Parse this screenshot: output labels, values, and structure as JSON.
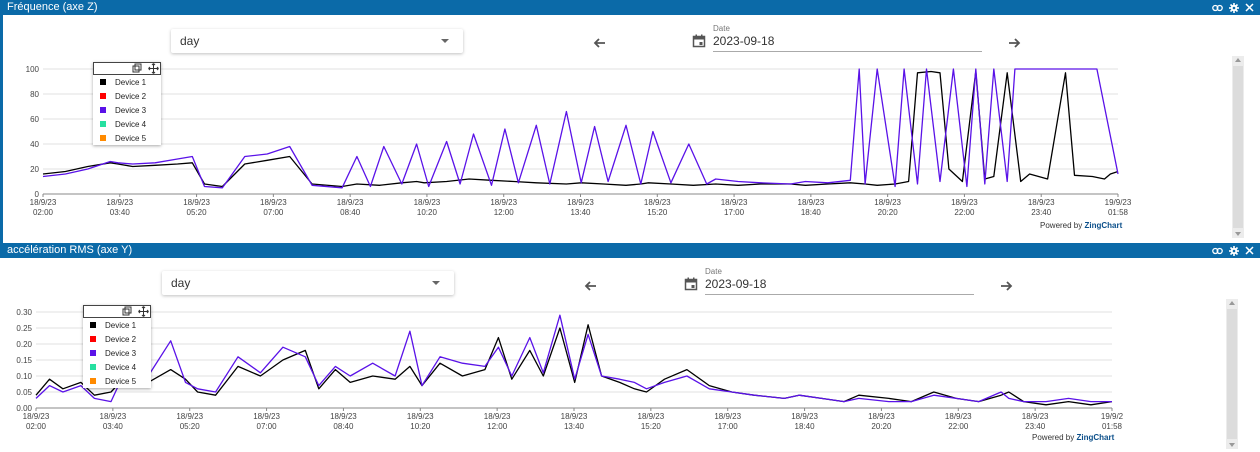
{
  "panels": [
    {
      "title": "Fréquence (axe Z)",
      "period_select": {
        "value": "day"
      },
      "date_field": {
        "label": "Date",
        "value": "2023-09-18"
      },
      "powered_by": {
        "prefix": "Powered by ",
        "brand": "ZingChart"
      },
      "legend": [
        {
          "label": "Device 1",
          "color": "#000000"
        },
        {
          "label": "Device 2",
          "color": "#ff0000"
        },
        {
          "label": "Device 3",
          "color": "#5a12e8"
        },
        {
          "label": "Device 4",
          "color": "#26e0a0"
        },
        {
          "label": "Device 5",
          "color": "#ff8a00"
        }
      ]
    },
    {
      "title": "accélération RMS (axe Y)",
      "period_select": {
        "value": "day"
      },
      "date_field": {
        "label": "Date",
        "value": "2023-09-18"
      },
      "powered_by": {
        "prefix": "Powered by ",
        "brand": "ZingChart"
      },
      "legend": [
        {
          "label": "Device 1",
          "color": "#000000"
        },
        {
          "label": "Device 2",
          "color": "#ff0000"
        },
        {
          "label": "Device 3",
          "color": "#5a12e8"
        },
        {
          "label": "Device 4",
          "color": "#26e0a0"
        },
        {
          "label": "Device 5",
          "color": "#ff8a00"
        }
      ]
    }
  ],
  "icons": [
    "link-icon",
    "gear-icon",
    "close-icon",
    "calendar-icon",
    "arrow-left-icon",
    "arrow-right-icon",
    "restore-icon",
    "move-icon"
  ],
  "chart_data": [
    {
      "type": "line",
      "title": "Fréquence (axe Z)",
      "x_tick_dates": [
        "18/9/23",
        "18/9/23",
        "18/9/23",
        "18/9/23",
        "18/9/23",
        "18/9/23",
        "18/9/23",
        "18/9/23",
        "18/9/23",
        "18/9/23",
        "18/9/23",
        "18/9/23",
        "18/9/23",
        "18/9/23",
        "19/9/23"
      ],
      "x_tick_times": [
        "02:00",
        "03:40",
        "05:20",
        "07:00",
        "08:40",
        "10:20",
        "12:00",
        "13:40",
        "15:20",
        "17:00",
        "18:40",
        "20:20",
        "22:00",
        "23:40",
        "01:58"
      ],
      "y_ticks": [
        "0",
        "20",
        "40",
        "60",
        "80",
        "100"
      ],
      "ylim": [
        0,
        100
      ],
      "grid": true,
      "legend_position": "top-left",
      "series": [
        {
          "name": "Device 1",
          "color": "#000000",
          "x": [
            2.0,
            2.5,
            3.0,
            3.5,
            3.67,
            4.0,
            4.5,
            5.0,
            5.33,
            5.6,
            6.0,
            6.5,
            7.0,
            7.5,
            8.0,
            8.67,
            9.0,
            9.5,
            10.0,
            10.33,
            10.5,
            11.0,
            11.5,
            12.0,
            12.5,
            13.0,
            13.67,
            14.0,
            14.5,
            15.0,
            15.33,
            15.5,
            16.0,
            16.5,
            17.0,
            17.5,
            18.0,
            18.67,
            19.0,
            19.5,
            20.0,
            20.33,
            20.6,
            21.0,
            21.3,
            21.5,
            21.8,
            22.0,
            22.2,
            22.5,
            22.8,
            23.0,
            23.2,
            23.5,
            23.8,
            24.0,
            24.4,
            24.8,
            25.0,
            25.4,
            25.67,
            25.8,
            25.97
          ],
          "y": [
            16,
            18,
            22,
            25,
            24,
            22,
            23,
            24,
            25,
            8,
            6,
            24,
            27,
            30,
            8,
            6,
            8,
            7,
            9,
            10,
            9,
            10,
            12,
            11,
            10,
            9,
            8,
            9,
            8,
            7,
            8,
            9,
            8,
            7,
            8,
            7,
            8,
            8,
            7,
            8,
            9,
            8,
            7,
            8,
            10,
            97,
            98,
            97,
            20,
            10,
            98,
            12,
            14,
            97,
            10,
            16,
            12,
            97,
            15,
            14,
            12,
            16,
            18
          ]
        },
        {
          "name": "Device 3",
          "color": "#5a12e8",
          "x": [
            2.0,
            2.5,
            3.0,
            3.5,
            3.67,
            4.0,
            4.5,
            5.0,
            5.33,
            5.6,
            6.0,
            6.5,
            7.0,
            7.5,
            8.0,
            8.67,
            9.0,
            9.3,
            9.6,
            10.0,
            10.33,
            10.6,
            11.0,
            11.3,
            11.6,
            12.0,
            12.3,
            12.6,
            13.0,
            13.3,
            13.67,
            14.0,
            14.3,
            14.6,
            15.0,
            15.33,
            15.6,
            16.0,
            16.4,
            16.8,
            17.0,
            17.5,
            18.0,
            18.67,
            19.0,
            19.5,
            20.0,
            20.2,
            20.33,
            20.6,
            21.0,
            21.2,
            21.5,
            21.7,
            22.0,
            22.3,
            22.6,
            22.8,
            23.0,
            23.2,
            23.5,
            23.67,
            23.8,
            24.0,
            24.5,
            25.0,
            25.5,
            25.97
          ],
          "y": [
            14,
            16,
            20,
            26,
            25,
            24,
            25,
            28,
            30,
            6,
            5,
            30,
            32,
            38,
            7,
            5,
            30,
            6,
            38,
            8,
            40,
            6,
            42,
            8,
            48,
            7,
            52,
            9,
            55,
            8,
            66,
            9,
            54,
            10,
            55,
            8,
            50,
            9,
            40,
            8,
            12,
            10,
            9,
            8,
            10,
            9,
            11,
            100,
            8,
            100,
            6,
            100,
            8,
            100,
            10,
            100,
            6,
            100,
            8,
            100,
            10,
            100,
            100,
            100,
            100,
            100,
            100,
            16
          ]
        }
      ]
    },
    {
      "type": "line",
      "title": "accélération RMS (axe Y)",
      "x_tick_dates": [
        "18/9/23",
        "18/9/23",
        "18/9/23",
        "18/9/23",
        "18/9/23",
        "18/9/23",
        "18/9/23",
        "18/9/23",
        "18/9/23",
        "18/9/23",
        "18/9/23",
        "18/9/23",
        "18/9/23",
        "18/9/23",
        "19/9/2"
      ],
      "x_tick_times": [
        "02:00",
        "03:40",
        "05:20",
        "07:00",
        "08:40",
        "10:20",
        "12:00",
        "13:40",
        "15:20",
        "17:00",
        "18:40",
        "20:20",
        "22:00",
        "23:40",
        "01:58"
      ],
      "y_ticks": [
        "0.00",
        "0.05",
        "0.10",
        "0.15",
        "0.20",
        "0.25",
        "0.30"
      ],
      "ylim": [
        0,
        0.3
      ],
      "grid": true,
      "legend_position": "top-left",
      "series": [
        {
          "name": "Device 1",
          "color": "#000000",
          "x": [
            2.0,
            2.3,
            2.6,
            3.0,
            3.3,
            3.67,
            4.0,
            4.5,
            5.0,
            5.33,
            5.6,
            6.0,
            6.5,
            7.0,
            7.5,
            8.0,
            8.3,
            8.67,
            9.0,
            9.5,
            10.0,
            10.33,
            10.6,
            11.0,
            11.5,
            12.0,
            12.3,
            12.6,
            13.0,
            13.3,
            13.67,
            14.0,
            14.3,
            14.6,
            15.0,
            15.33,
            15.6,
            16.0,
            16.5,
            17.0,
            17.5,
            18.0,
            18.67,
            19.0,
            19.5,
            20.0,
            20.33,
            21.0,
            21.5,
            22.0,
            22.5,
            23.0,
            23.5,
            23.67,
            24.0,
            24.5,
            25.0,
            25.5,
            25.97
          ],
          "y": [
            0.04,
            0.09,
            0.06,
            0.08,
            0.04,
            0.05,
            0.1,
            0.08,
            0.12,
            0.09,
            0.05,
            0.04,
            0.13,
            0.1,
            0.15,
            0.18,
            0.06,
            0.12,
            0.08,
            0.1,
            0.09,
            0.13,
            0.07,
            0.14,
            0.1,
            0.12,
            0.22,
            0.09,
            0.18,
            0.1,
            0.25,
            0.08,
            0.26,
            0.1,
            0.08,
            0.06,
            0.05,
            0.09,
            0.12,
            0.07,
            0.05,
            0.04,
            0.03,
            0.04,
            0.03,
            0.02,
            0.04,
            0.03,
            0.02,
            0.05,
            0.03,
            0.02,
            0.04,
            0.05,
            0.02,
            0.01,
            0.02,
            0.01,
            0.02
          ]
        },
        {
          "name": "Device 3",
          "color": "#5a12e8",
          "x": [
            2.0,
            2.3,
            2.6,
            3.0,
            3.3,
            3.67,
            4.0,
            4.5,
            5.0,
            5.33,
            5.6,
            6.0,
            6.5,
            7.0,
            7.5,
            8.0,
            8.3,
            8.67,
            9.0,
            9.5,
            10.0,
            10.33,
            10.6,
            11.0,
            11.5,
            12.0,
            12.3,
            12.6,
            13.0,
            13.3,
            13.67,
            14.0,
            14.3,
            14.6,
            15.0,
            15.33,
            15.6,
            16.0,
            16.5,
            17.0,
            17.5,
            18.0,
            18.67,
            19.0,
            19.5,
            20.0,
            20.33,
            21.0,
            21.5,
            22.0,
            22.5,
            23.0,
            23.5,
            23.67,
            24.0,
            24.5,
            25.0,
            25.5,
            25.97
          ],
          "y": [
            0.03,
            0.07,
            0.05,
            0.07,
            0.03,
            0.02,
            0.12,
            0.1,
            0.21,
            0.08,
            0.06,
            0.05,
            0.16,
            0.11,
            0.19,
            0.16,
            0.07,
            0.13,
            0.1,
            0.14,
            0.1,
            0.24,
            0.07,
            0.16,
            0.14,
            0.13,
            0.19,
            0.1,
            0.22,
            0.11,
            0.29,
            0.09,
            0.23,
            0.1,
            0.09,
            0.08,
            0.06,
            0.08,
            0.1,
            0.06,
            0.05,
            0.04,
            0.03,
            0.04,
            0.03,
            0.02,
            0.03,
            0.02,
            0.02,
            0.04,
            0.03,
            0.02,
            0.05,
            0.03,
            0.02,
            0.02,
            0.03,
            0.02,
            0.02
          ]
        }
      ]
    }
  ]
}
